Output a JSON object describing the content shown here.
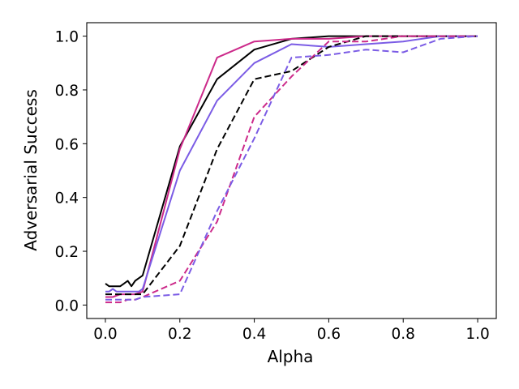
{
  "chart_data": {
    "type": "line",
    "xlabel": "Alpha",
    "ylabel": "Adversarial Success",
    "xlim": [
      -0.05,
      1.05
    ],
    "ylim": [
      -0.05,
      1.05
    ],
    "xticks": [
      0.0,
      0.2,
      0.4,
      0.6,
      0.8,
      1.0
    ],
    "xtick_labels": [
      "0.0",
      "0.2",
      "0.4",
      "0.6",
      "0.8",
      "1.0"
    ],
    "yticks": [
      0.0,
      0.2,
      0.4,
      0.6,
      0.8,
      1.0
    ],
    "ytick_labels": [
      "0.0",
      "0.2",
      "0.4",
      "0.6",
      "0.8",
      "1.0"
    ],
    "grid": false,
    "legend": false,
    "series": [
      {
        "color": "#000000",
        "style": "solid",
        "x": [
          0.0,
          0.01,
          0.02,
          0.03,
          0.04,
          0.05,
          0.06,
          0.07,
          0.08,
          0.09,
          0.1,
          0.2,
          0.3,
          0.4,
          0.5,
          0.6,
          0.7,
          0.8,
          0.9,
          1.0
        ],
        "y": [
          0.08,
          0.07,
          0.07,
          0.07,
          0.07,
          0.08,
          0.09,
          0.07,
          0.09,
          0.1,
          0.11,
          0.59,
          0.84,
          0.95,
          0.99,
          1.0,
          1.0,
          1.0,
          1.0,
          1.0
        ]
      },
      {
        "color": "#cc2a8a",
        "style": "solid",
        "x": [
          0.0,
          0.02,
          0.04,
          0.06,
          0.08,
          0.1,
          0.2,
          0.3,
          0.4,
          0.5,
          0.6,
          0.7,
          0.8,
          0.9,
          1.0
        ],
        "y": [
          0.03,
          0.03,
          0.04,
          0.04,
          0.04,
          0.05,
          0.58,
          0.92,
          0.98,
          0.99,
          0.99,
          1.0,
          1.0,
          1.0,
          1.0
        ]
      },
      {
        "color": "#7b5ce5",
        "style": "solid",
        "x": [
          0.0,
          0.01,
          0.02,
          0.03,
          0.04,
          0.05,
          0.06,
          0.07,
          0.08,
          0.09,
          0.1,
          0.2,
          0.3,
          0.4,
          0.5,
          0.6,
          0.7,
          0.8,
          0.9,
          1.0
        ],
        "y": [
          0.05,
          0.05,
          0.06,
          0.05,
          0.05,
          0.05,
          0.05,
          0.05,
          0.05,
          0.05,
          0.06,
          0.5,
          0.76,
          0.9,
          0.97,
          0.96,
          0.97,
          0.98,
          1.0,
          1.0
        ]
      },
      {
        "color": "#000000",
        "style": "dashed",
        "x": [
          0.0,
          0.02,
          0.04,
          0.06,
          0.08,
          0.1,
          0.2,
          0.3,
          0.4,
          0.5,
          0.6,
          0.7,
          0.8,
          0.9,
          1.0
        ],
        "y": [
          0.04,
          0.04,
          0.04,
          0.04,
          0.04,
          0.04,
          0.22,
          0.58,
          0.84,
          0.87,
          0.96,
          1.0,
          1.0,
          1.0,
          1.0
        ]
      },
      {
        "color": "#cc2a8a",
        "style": "dashed",
        "x": [
          0.0,
          0.02,
          0.04,
          0.06,
          0.08,
          0.1,
          0.2,
          0.3,
          0.4,
          0.5,
          0.6,
          0.7,
          0.8,
          0.9,
          1.0
        ],
        "y": [
          0.01,
          0.01,
          0.01,
          0.02,
          0.02,
          0.03,
          0.09,
          0.31,
          0.7,
          0.85,
          0.98,
          0.98,
          1.0,
          1.0,
          1.0
        ]
      },
      {
        "color": "#7b5ce5",
        "style": "dashed",
        "x": [
          0.0,
          0.02,
          0.04,
          0.06,
          0.08,
          0.1,
          0.2,
          0.3,
          0.4,
          0.5,
          0.6,
          0.7,
          0.8,
          0.9,
          1.0
        ],
        "y": [
          0.02,
          0.02,
          0.02,
          0.02,
          0.02,
          0.03,
          0.04,
          0.35,
          0.62,
          0.92,
          0.93,
          0.95,
          0.94,
          0.99,
          1.0
        ]
      }
    ]
  }
}
